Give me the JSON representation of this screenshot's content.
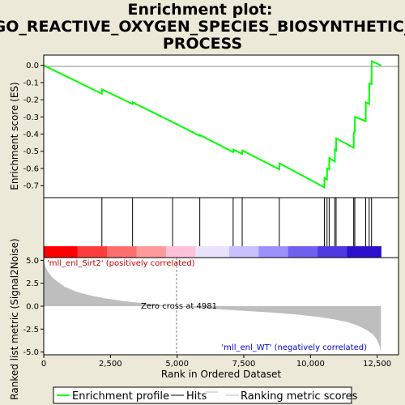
{
  "chart_data": {
    "type": "line",
    "title_line1": "Enrichment plot:",
    "title_line2": "GO_REACTIVE_OXYGEN_SPECIES_BIOSYNTHETIC_",
    "title_line3": "PROCESS",
    "xlabel": "Rank in Ordered Dataset",
    "ylabel_top": "Enrichment score (ES)",
    "ylabel_bottom": "Ranked list metric (Signal2Noise)",
    "xlim": [
      0,
      13300
    ],
    "x_ticks": [
      0,
      2500,
      5000,
      7500,
      10000,
      12500
    ],
    "x_tick_labels": [
      "0",
      "2,500",
      "5,000",
      "7,500",
      "10,000",
      "12,500"
    ],
    "es_ylim": [
      -0.77,
      0.06
    ],
    "es_ticks": [
      0.0,
      -0.1,
      -0.2,
      -0.3,
      -0.4,
      -0.5,
      -0.6,
      -0.7
    ],
    "es_tick_labels": [
      "0.0",
      "-0.1",
      "-0.2",
      "-0.3",
      "-0.4",
      "-0.5",
      "-0.6",
      "-0.7"
    ],
    "metric_ylim": [
      -5.3,
      5.3
    ],
    "metric_ticks": [
      5.0,
      2.5,
      0.0,
      -2.5,
      -5.0
    ],
    "metric_tick_labels": [
      "5.0",
      "2.5",
      "0.0",
      "-2.5",
      "-5.0"
    ],
    "hits": [
      2180,
      3330,
      4830,
      5850,
      7100,
      7440,
      8830,
      10520,
      10620,
      10700,
      10910,
      10960,
      11620,
      11660,
      12070,
      12200,
      12290
    ],
    "es_profile": [
      [
        0,
        0.0
      ],
      [
        2180,
        -0.165
      ],
      [
        2185,
        -0.14
      ],
      [
        3330,
        -0.225
      ],
      [
        3335,
        -0.215
      ],
      [
        4830,
        -0.33
      ],
      [
        5850,
        -0.41
      ],
      [
        5855,
        -0.405
      ],
      [
        7100,
        -0.505
      ],
      [
        7105,
        -0.49
      ],
      [
        7440,
        -0.515
      ],
      [
        7445,
        -0.495
      ],
      [
        8830,
        -0.605
      ],
      [
        8835,
        -0.57
      ],
      [
        10520,
        -0.71
      ],
      [
        10525,
        -0.655
      ],
      [
        10620,
        -0.665
      ],
      [
        10625,
        -0.6
      ],
      [
        10700,
        -0.605
      ],
      [
        10705,
        -0.54
      ],
      [
        10910,
        -0.56
      ],
      [
        10915,
        -0.49
      ],
      [
        10960,
        -0.495
      ],
      [
        10965,
        -0.425
      ],
      [
        11620,
        -0.48
      ],
      [
        11625,
        -0.39
      ],
      [
        11660,
        -0.385
      ],
      [
        11665,
        -0.3
      ],
      [
        12070,
        -0.325
      ],
      [
        12075,
        -0.215
      ],
      [
        12200,
        -0.225
      ],
      [
        12205,
        -0.105
      ],
      [
        12290,
        -0.11
      ],
      [
        12295,
        0.025
      ],
      [
        12640,
        0.0
      ]
    ],
    "metric_profile": [
      [
        0,
        5.1
      ],
      [
        50,
        4.4
      ],
      [
        150,
        3.8
      ],
      [
        300,
        3.2
      ],
      [
        500,
        2.7
      ],
      [
        800,
        2.1
      ],
      [
        1200,
        1.6
      ],
      [
        1700,
        1.2
      ],
      [
        2300,
        0.85
      ],
      [
        3000,
        0.55
      ],
      [
        3800,
        0.3
      ],
      [
        4500,
        0.1
      ],
      [
        4981,
        0.0
      ],
      [
        5500,
        -0.12
      ],
      [
        6500,
        -0.32
      ],
      [
        7500,
        -0.5
      ],
      [
        8500,
        -0.68
      ],
      [
        9500,
        -0.92
      ],
      [
        10300,
        -1.18
      ],
      [
        10900,
        -1.45
      ],
      [
        11400,
        -1.75
      ],
      [
        11800,
        -2.15
      ],
      [
        12100,
        -2.6
      ],
      [
        12350,
        -3.1
      ],
      [
        12500,
        -3.7
      ],
      [
        12600,
        -4.4
      ],
      [
        12640,
        -5.0
      ]
    ],
    "ranking_bar_colors": [
      "#ff0000",
      "#ff3c3c",
      "#ff6e6e",
      "#ff9a9a",
      "#ffc2d8",
      "#e8e2ff",
      "#c8c0ff",
      "#9c90ff",
      "#7060f0",
      "#4e38e0",
      "#2a10cc"
    ],
    "zero_cross_rank": 4981,
    "annotation_zero": "Zero cross at 4981",
    "annotation_pos": "'mll_enl_Sirt2' (positively correlated)",
    "annotation_neg": "'mll_enl_WT' (negatively correlated)",
    "legend": {
      "placement": "bottom",
      "items": [
        "Enrichment profile",
        "Hits",
        "Ranking metric scores"
      ]
    },
    "colors": {
      "es_line": "#00ff00",
      "hits": "#000000",
      "metric_fill": "#bebebe",
      "pos_annot": "#cc0000",
      "neg_annot": "#0000cc",
      "background": "#ece9d8"
    }
  }
}
